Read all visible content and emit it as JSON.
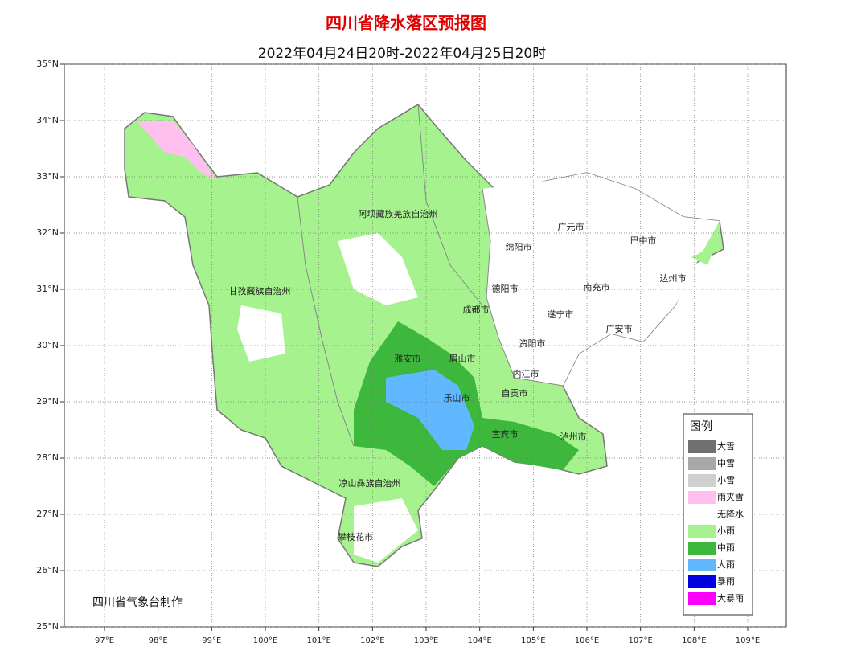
{
  "header": {
    "title": "四川省降水落区预报图",
    "subtitle": "2022年04月24日20时-2022年04月25日20时"
  },
  "map": {
    "xlim": [
      96.25,
      109.72
    ],
    "ylim": [
      25,
      35
    ],
    "xticks": [
      {
        "value": 97,
        "label": "97°E"
      },
      {
        "value": 98,
        "label": "98°E"
      },
      {
        "value": 99,
        "label": "99°E"
      },
      {
        "value": 100,
        "label": "100°E"
      },
      {
        "value": 101,
        "label": "101°E"
      },
      {
        "value": 102,
        "label": "102°E"
      },
      {
        "value": 103,
        "label": "103°E"
      },
      {
        "value": 104,
        "label": "104°E"
      },
      {
        "value": 105,
        "label": "105°E"
      },
      {
        "value": 106,
        "label": "106°E"
      },
      {
        "value": 107,
        "label": "107°E"
      },
      {
        "value": 108,
        "label": "108°E"
      },
      {
        "value": 109,
        "label": "109°E"
      }
    ],
    "yticks": [
      {
        "value": 25,
        "label": "25°N"
      },
      {
        "value": 26,
        "label": "26°N"
      },
      {
        "value": 27,
        "label": "27°N"
      },
      {
        "value": 28,
        "label": "28°N"
      },
      {
        "value": 29,
        "label": "29°N"
      },
      {
        "value": 30,
        "label": "30°N"
      },
      {
        "value": 31,
        "label": "31°N"
      },
      {
        "value": 32,
        "label": "32°N"
      },
      {
        "value": 33,
        "label": "33°N"
      },
      {
        "value": 34,
        "label": "34°N"
      },
      {
        "value": 35,
        "label": "35°N"
      }
    ],
    "grid": true,
    "places": [
      "广元市",
      "巴中市",
      "绵阳市",
      "达州市",
      "德阳市",
      "南充市",
      "成都市",
      "遂宁市",
      "广安市",
      "资阳市",
      "雅安市",
      "眉山市",
      "内江市",
      "乐山市",
      "自贡市",
      "宜宾市",
      "泸州市",
      "阿坝藏族羌族自治州",
      "甘孜藏族自治州",
      "凉山彝族自治州",
      "攀枝花市"
    ]
  },
  "legend": {
    "title": "图例",
    "items": [
      {
        "label": "大雪",
        "color": "#707070"
      },
      {
        "label": "中雪",
        "color": "#a8a8a8"
      },
      {
        "label": "小雪",
        "color": "#d0d0d0"
      },
      {
        "label": "雨夹雪",
        "color": "#ffc0f0"
      },
      {
        "label": "无降水",
        "color": "#ffffff"
      },
      {
        "label": "小雨",
        "color": "#a6f28f"
      },
      {
        "label": "中雨",
        "color": "#3db83d"
      },
      {
        "label": "大雨",
        "color": "#61b8ff"
      },
      {
        "label": "暴雨",
        "color": "#0000e0"
      },
      {
        "label": "大暴雨",
        "color": "#fa00fa"
      }
    ]
  },
  "credit": "四川省气象台制作"
}
